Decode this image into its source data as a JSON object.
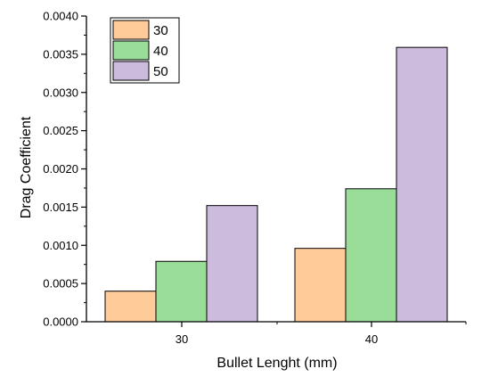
{
  "chart_data": {
    "type": "bar",
    "categories": [
      "30",
      "40"
    ],
    "series": [
      {
        "name": "30",
        "values": [
          0.0004,
          0.00096
        ],
        "color": "#FFCC99"
      },
      {
        "name": "40",
        "values": [
          0.00079,
          0.00174
        ],
        "color": "#99DD99"
      },
      {
        "name": "50",
        "values": [
          0.00152,
          0.00359
        ],
        "color": "#CCBBDD"
      }
    ],
    "xlabel": "Bullet Lenght (mm)",
    "ylabel": "Drag Coefficient",
    "ylim": [
      0,
      0.004
    ],
    "yticks": [
      "0.0000",
      "0.0005",
      "0.0010",
      "0.0015",
      "0.0020",
      "0.0025",
      "0.0030",
      "0.0035",
      "0.0040"
    ],
    "legend_position": "top-left",
    "grid": false
  }
}
